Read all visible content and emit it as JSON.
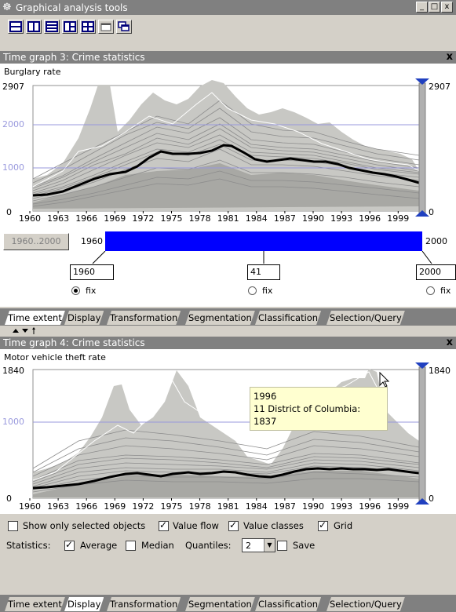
{
  "window": {
    "title": "Graphical analysis tools",
    "buttons": [
      "_",
      "□",
      "x"
    ]
  },
  "toolbar": {
    "icons": [
      "layout-rows-icon",
      "layout-columns-icon",
      "layout-three-rows-icon",
      "layout-split-icon",
      "layout-grid-icon",
      "window-icon",
      "cascade-windows-icon"
    ]
  },
  "graph1": {
    "title": "Time graph 3: Crime statistics",
    "close": "x",
    "attribute": "Burglary rate",
    "y_max_label": "2907",
    "y_mid_label": "2000",
    "y_low_label": "1000",
    "y_zero_label": "0",
    "right_max_label": "2907",
    "right_zero_label": "0"
  },
  "graph2": {
    "title": "Time graph 4: Crime statistics",
    "close": "x",
    "attribute": "Motor vehicle theft rate",
    "y_max_label": "1840",
    "y_mid_label": "1000",
    "y_zero_label": "0",
    "right_max_label": "1840",
    "right_zero_label": "0",
    "tooltip_line1": "1996",
    "tooltip_line2": "11 District of Columbia: 1837"
  },
  "x_ticks": [
    "1960",
    "1963",
    "1966",
    "1969",
    "1972",
    "1975",
    "1978",
    "1981",
    "1984",
    "1987",
    "1990",
    "1993",
    "1996",
    "1999"
  ],
  "time_extent": {
    "range_button": "1960..2000",
    "start_label": "1960",
    "end_label": "2000",
    "start_value": "1960",
    "length_value": "41",
    "end_value": "2000",
    "fix_label": "fix",
    "selected_fraction_start": 0,
    "selected_fraction_end": 1
  },
  "tabs1": [
    "Time extent",
    "Display",
    "Transformation",
    "Segmentation",
    "Classification",
    "Selection/Query"
  ],
  "tabs1_active": "Time extent",
  "tabs2": [
    "Time extent",
    "Display",
    "Transformation",
    "Segmentation",
    "Classification",
    "Selection/Query"
  ],
  "tabs2_active": "Display",
  "display": {
    "show_selected": "Show only selected objects",
    "show_selected_checked": false,
    "value_flow": "Value flow",
    "value_flow_checked": true,
    "value_classes": "Value classes",
    "value_classes_checked": true,
    "grid": "Grid",
    "grid_checked": true,
    "statistics_label": "Statistics:",
    "average": "Average",
    "average_checked": true,
    "median": "Median",
    "median_checked": false,
    "quantiles_label": "Quantiles:",
    "quantiles_value": "2",
    "save": "Save",
    "save_checked": false
  },
  "colors": {
    "band": "#c8c8c4",
    "lines": "#8c8c8c",
    "average": "#000000",
    "grid": "#9999dd",
    "slider": "#0000ff",
    "axis_handle": "#2040c0"
  }
}
